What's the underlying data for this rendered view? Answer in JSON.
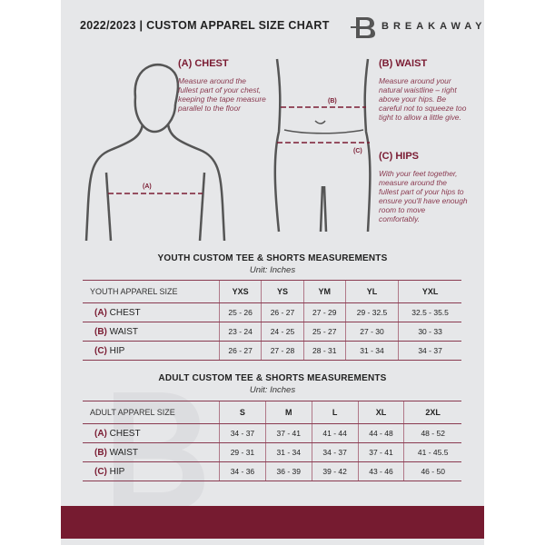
{
  "header": {
    "title": "2022/2023  |  CUSTOM APPAREL SIZE CHART",
    "brand": "BREAKAWAY",
    "logo_letter": "B"
  },
  "guides": [
    {
      "heading": "(A) CHEST",
      "text": "Measure around the fullest part of your chest, keeping the tape measure parallel to the floor",
      "marker": "(A)"
    },
    {
      "heading": "(B) WAIST",
      "text": "Measure around your natural waistline – right above your hips. Be careful not to squeeze too tight to allow a little give.",
      "marker": "(B)"
    },
    {
      "heading": "(C) HIPS",
      "text": "With your feet together, measure around the fullest part of your hips to ensure you'll have enough room to move comfortably.",
      "marker": "(C)"
    }
  ],
  "youth": {
    "title": "YOUTH CUSTOM TEE & SHORTS MEASUREMENTS",
    "unit": "Unit: Inches",
    "header": "YOUTH APPAREL SIZE",
    "sizes": [
      "YXS",
      "YS",
      "YM",
      "YL",
      "YXL"
    ],
    "rows": [
      {
        "letter": "(A)",
        "label": "CHEST",
        "values": [
          "25 - 26",
          "26 - 27",
          "27 - 29",
          "29 - 32.5",
          "32.5 - 35.5"
        ]
      },
      {
        "letter": "(B)",
        "label": "WAIST",
        "values": [
          "23 - 24",
          "24 - 25",
          "25 - 27",
          "27 - 30",
          "30 - 33"
        ]
      },
      {
        "letter": "(C)",
        "label": "HIP",
        "values": [
          "26 - 27",
          "27 - 28",
          "28 - 31",
          "31 - 34",
          "34 - 37"
        ]
      }
    ]
  },
  "adult": {
    "title": "ADULT CUSTOM TEE & SHORTS MEASUREMENTS",
    "unit": "Unit: Inches",
    "header": "ADULT APPAREL SIZE",
    "sizes": [
      "S",
      "M",
      "L",
      "XL",
      "2XL"
    ],
    "rows": [
      {
        "letter": "(A)",
        "label": "CHEST",
        "values": [
          "34 - 37",
          "37 - 41",
          "41 - 44",
          "44 - 48",
          "48 - 52"
        ]
      },
      {
        "letter": "(B)",
        "label": "WAIST",
        "values": [
          "29 - 31",
          "31 - 34",
          "34 - 37",
          "37 - 41",
          "41 - 45.5"
        ]
      },
      {
        "letter": "(C)",
        "label": "HIP",
        "values": [
          "34 - 36",
          "36 - 39",
          "39 - 42",
          "43 - 46",
          "46 - 50"
        ]
      }
    ]
  },
  "colors": {
    "accent": "#761b30",
    "panel": "#e6e7e9"
  }
}
